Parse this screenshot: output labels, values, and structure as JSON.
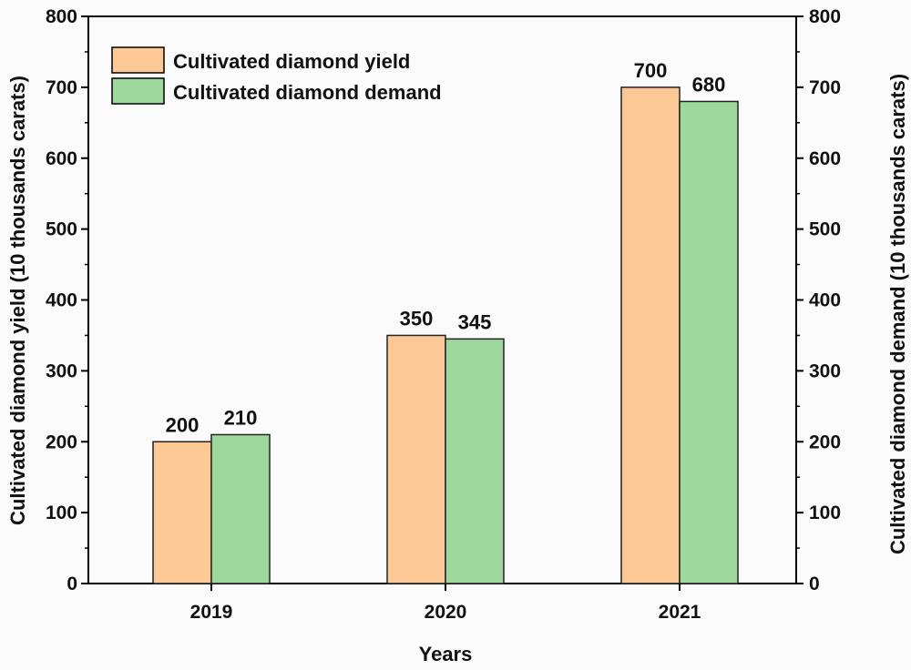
{
  "chart_data": {
    "type": "bar",
    "categories": [
      "2019",
      "2020",
      "2021"
    ],
    "series": [
      {
        "name": "Cultivated diamond yield",
        "values": [
          200,
          350,
          700
        ],
        "color": "#fcc996",
        "axis": "left"
      },
      {
        "name": "Cultivated diamond demand",
        "values": [
          210,
          345,
          680
        ],
        "color": "#9fd89d",
        "axis": "right"
      }
    ],
    "data_labels": [
      [
        "200",
        "350",
        "700"
      ],
      [
        "210",
        "345",
        "680"
      ]
    ],
    "xlabel": "Years",
    "ylabel": "Cultivated diamond yield (10 thousands carats)",
    "ylabel_right": "Cultivated diamond demand (10 thousands carats)",
    "ylim": [
      0,
      800
    ],
    "y_ticks": [
      "0",
      "100",
      "200",
      "300",
      "400",
      "500",
      "600",
      "700",
      "800"
    ],
    "grid": false,
    "legend_position": "top-left"
  }
}
